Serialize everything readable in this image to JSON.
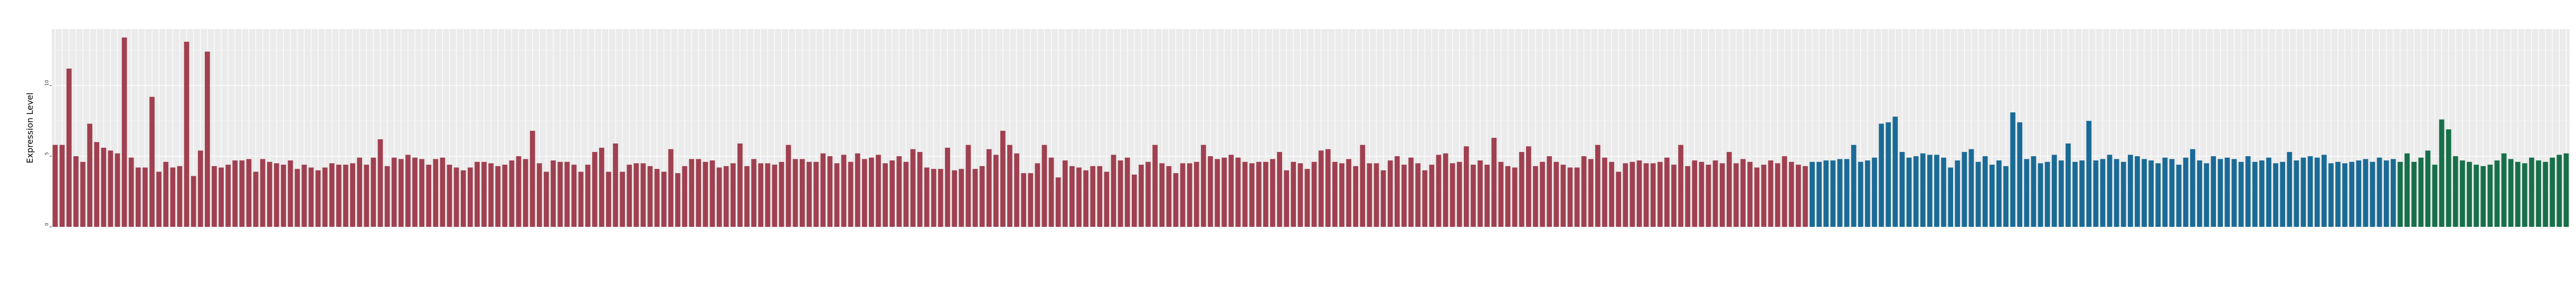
{
  "chart_data": {
    "type": "bar",
    "title": "",
    "xlabel": "",
    "ylabel": "Expression Level",
    "ylim": [
      0,
      14
    ],
    "yticks": [
      0,
      5,
      10
    ],
    "grid": true,
    "legend": "none",
    "colors": {
      "red": "#A04050",
      "blue": "#1A6B96",
      "green": "#17704A",
      "panel": "#EBEBEB"
    },
    "groups": [
      {
        "color": "red",
        "count": 254
      },
      {
        "color": "blue",
        "count": 85
      },
      {
        "color": "green",
        "count": 25
      }
    ],
    "values": [
      5.8,
      5.8,
      11.2,
      5.0,
      4.6,
      7.3,
      6.0,
      5.6,
      5.4,
      5.2,
      13.4,
      4.9,
      4.2,
      4.2,
      9.2,
      3.9,
      4.6,
      4.2,
      4.3,
      13.1,
      3.6,
      5.4,
      12.4,
      4.3,
      4.2,
      4.4,
      4.7,
      4.7,
      4.8,
      3.9,
      4.8,
      4.6,
      4.5,
      4.4,
      4.7,
      4.1,
      4.4,
      4.2,
      4.0,
      4.2,
      4.5,
      4.4,
      4.4,
      4.5,
      4.9,
      4.4,
      4.9,
      6.2,
      4.3,
      4.9,
      4.8,
      5.1,
      4.9,
      4.8,
      4.4,
      4.8,
      4.9,
      4.4,
      4.2,
      4.0,
      4.2,
      4.6,
      4.6,
      4.5,
      4.3,
      4.4,
      4.7,
      5.0,
      4.8,
      6.8,
      4.5,
      3.9,
      4.7,
      4.6,
      4.6,
      4.4,
      3.9,
      4.4,
      5.3,
      5.6,
      3.9,
      5.9,
      3.9,
      4.4,
      4.5,
      4.5,
      4.3,
      4.1,
      3.9,
      5.5,
      3.8,
      4.3,
      4.8,
      4.8,
      4.6,
      4.7,
      4.2,
      4.3,
      4.5,
      5.9,
      4.3,
      4.8,
      4.5,
      4.5,
      4.4,
      4.6,
      5.8,
      4.8,
      4.8,
      4.6,
      4.6,
      5.2,
      5.0,
      4.5,
      5.1,
      4.6,
      5.2,
      4.8,
      4.9,
      5.1,
      4.5,
      4.7,
      5.0,
      4.6,
      5.5,
      5.3,
      4.2,
      4.1,
      4.1,
      5.6,
      4.0,
      4.1,
      5.8,
      4.1,
      4.3,
      5.5,
      5.1,
      6.8,
      5.8,
      5.2,
      3.8,
      3.8,
      4.5,
      5.8,
      4.9,
      3.5,
      4.7,
      4.3,
      4.2,
      4.0,
      4.3,
      4.3,
      3.9,
      5.1,
      4.7,
      4.9,
      3.7,
      4.4,
      4.6,
      5.8,
      4.5,
      4.3,
      3.8,
      4.5,
      4.5,
      4.6,
      5.8,
      5.0,
      4.8,
      4.9,
      5.1,
      4.9,
      4.6,
      4.5,
      4.6,
      4.6,
      4.8,
      5.3,
      4.0,
      4.6,
      4.5,
      4.1,
      4.6,
      5.4,
      5.5,
      4.6,
      4.5,
      4.8,
      4.3,
      5.8,
      4.5,
      4.5,
      4.0,
      4.7,
      5.0,
      4.4,
      4.9,
      4.5,
      4.0,
      4.4,
      5.1,
      5.2,
      4.5,
      4.6,
      5.7,
      4.4,
      4.7,
      4.4,
      6.3,
      4.6,
      4.3,
      4.2,
      5.3,
      5.7,
      4.3,
      4.6,
      5.0,
      4.6,
      4.4,
      4.2,
      4.2,
      5.0,
      4.8,
      5.8,
      4.9,
      4.6,
      3.9,
      4.5,
      4.6,
      4.7,
      4.5,
      4.5,
      4.6,
      4.9,
      4.4,
      5.8,
      4.3,
      4.7,
      4.6,
      4.4,
      4.7,
      4.5,
      5.3,
      4.5,
      4.8,
      4.6,
      4.2,
      4.4,
      4.7,
      4.5,
      5.0,
      4.6,
      4.4,
      4.3,
      4.6,
      4.6,
      4.7,
      4.7,
      4.8,
      4.8,
      5.8,
      4.6,
      4.7,
      4.9,
      7.3,
      7.4,
      7.8,
      5.3,
      4.9,
      5.0,
      5.2,
      5.1,
      5.1,
      4.9,
      4.2,
      4.7,
      5.3,
      5.5,
      4.6,
      5.0,
      4.4,
      4.7,
      4.3,
      8.1,
      7.4,
      4.8,
      5.0,
      4.5,
      4.6,
      5.1,
      4.7,
      5.9,
      4.6,
      4.7,
      7.5,
      4.7,
      4.8,
      5.1,
      4.8,
      4.6,
      5.1,
      5.0,
      4.8,
      4.7,
      4.5,
      4.9,
      4.8,
      4.4,
      4.9,
      5.5,
      4.7,
      4.5,
      5.0,
      4.8,
      4.9,
      4.8,
      4.6,
      5.0,
      4.6,
      4.7,
      4.9,
      4.5,
      4.6,
      5.3,
      4.7,
      4.9,
      5.0,
      4.9,
      5.1,
      4.5,
      4.6,
      4.5,
      4.6,
      4.7,
      4.8,
      4.6,
      4.9,
      4.7,
      4.8,
      4.6,
      5.2,
      4.6,
      4.9,
      5.4,
      4.4,
      7.6,
      6.9,
      5.0,
      4.7,
      4.6,
      4.4,
      4.3,
      4.4,
      4.7,
      5.2,
      4.8,
      4.6,
      4.5,
      4.9,
      4.7,
      4.6,
      4.9,
      5.1,
      5.2
    ]
  }
}
